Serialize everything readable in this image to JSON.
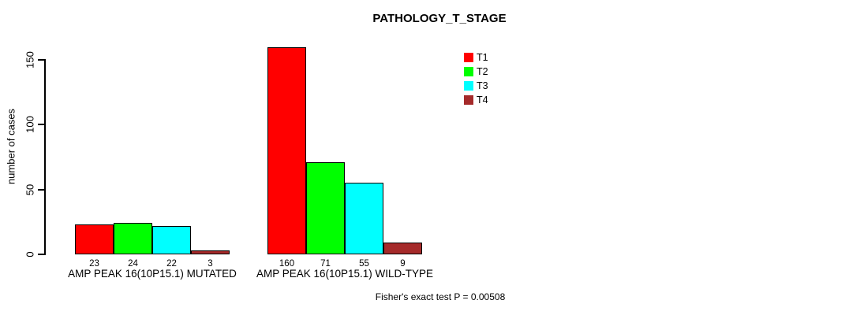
{
  "title": "PATHOLOGY_T_STAGE",
  "footer": "Fisher's exact test P = 0.00508",
  "chart_data": {
    "type": "bar",
    "title": "PATHOLOGY_T_STAGE",
    "xlabel": "",
    "ylabel": "number of cases",
    "ylim": [
      0,
      163
    ],
    "yticks": [
      0,
      50,
      100,
      150
    ],
    "grid": false,
    "legend_position": "upper-right-inside",
    "bar_value_labels_shown": true,
    "categories": [
      "AMP PEAK 16(10P15.1) MUTATED",
      "AMP PEAK 16(10P15.1) WILD-TYPE"
    ],
    "series": [
      {
        "name": "T1",
        "color": "#ff0000",
        "values": [
          23,
          160
        ]
      },
      {
        "name": "T2",
        "color": "#00ff00",
        "values": [
          24,
          71
        ]
      },
      {
        "name": "T3",
        "color": "#00ffff",
        "values": [
          22,
          55
        ]
      },
      {
        "name": "T4",
        "color": "#a52a2a",
        "values": [
          3,
          9
        ]
      }
    ],
    "annotation": "Fisher's exact test P = 0.00508"
  }
}
